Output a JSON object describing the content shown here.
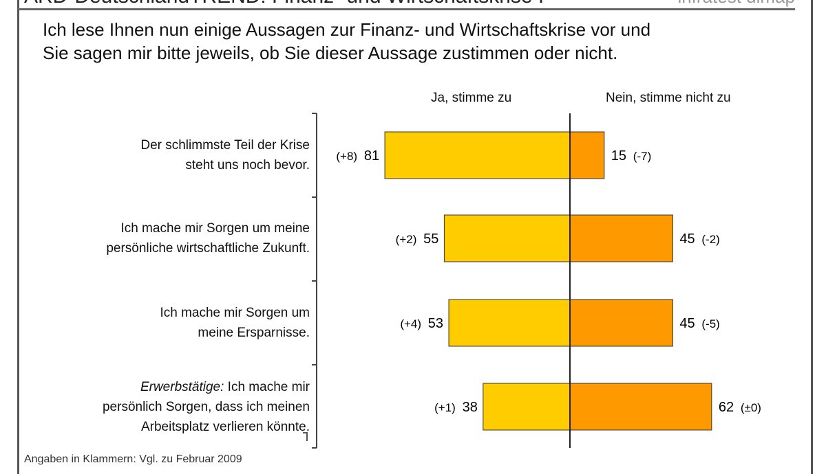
{
  "header": {
    "title": "ARD-DeutschlandTREND: Finanz- und Wirtschaftskrise I",
    "brand": "infratest dimap"
  },
  "question": [
    "Ich lese Ihnen nun einige Aussagen zur Finanz- und Wirtschaftskrise vor und",
    "Sie sagen mir bitte jeweils, ob Sie dieser Aussage zustimmen oder nicht."
  ],
  "footnote": "Angaben in Klammern: Vgl. zu Februar 2009",
  "chart_data": {
    "type": "bar",
    "orientation": "horizontal diverging",
    "colors": {
      "yes": "#FFCC00",
      "no": "#FF9900"
    },
    "series_headers": {
      "yes": "Ja, stimme zu",
      "no": "Nein, stimme nicht zu"
    },
    "categories": [
      {
        "prefix": "",
        "lines": [
          "Der schlimmste Teil der Krise",
          "steht uns noch bevor."
        ]
      },
      {
        "prefix": "",
        "lines": [
          "Ich mache mir Sorgen um meine",
          "persönliche wirtschaftliche Zukunft."
        ]
      },
      {
        "prefix": "",
        "lines": [
          "Ich mache mir Sorgen um",
          "meine Ersparnisse."
        ]
      },
      {
        "prefix": "Erwerbstätige:",
        "lines": [
          " Ich mache mir",
          "persönlich Sorgen, dass ich meinen",
          "Arbeitsplatz verlieren könnte."
        ]
      }
    ],
    "series": [
      {
        "name": "Ja, stimme zu",
        "values": [
          81,
          55,
          53,
          38
        ],
        "changes": [
          "(+8)",
          "(+2)",
          "(+4)",
          "(+1)"
        ]
      },
      {
        "name": "Nein, stimme nicht zu",
        "values": [
          15,
          45,
          45,
          62
        ],
        "changes": [
          "(-7)",
          "(-2)",
          "(-5)",
          "(±0)"
        ]
      }
    ]
  }
}
